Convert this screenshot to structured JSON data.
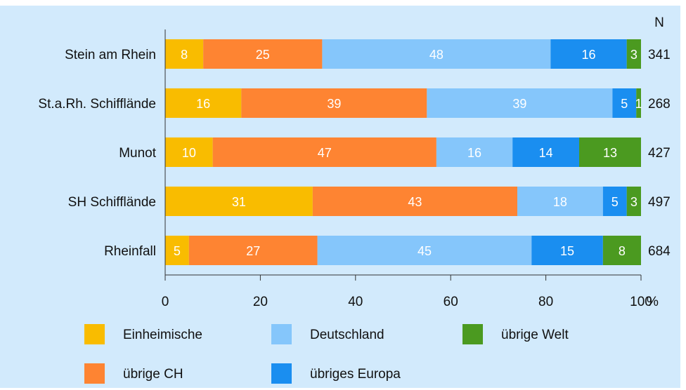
{
  "chart_data": {
    "type": "bar",
    "orientation": "horizontal",
    "stacked": true,
    "categories": [
      "Stein am Rhein",
      "St.a.Rh. Schifflände",
      "Munot",
      "SH Schifflände",
      "Rheinfall"
    ],
    "series": [
      {
        "name": "Einheimische",
        "color": "#f9bc00",
        "values": [
          8,
          16,
          10,
          31,
          5
        ]
      },
      {
        "name": "übrige CH",
        "color": "#fe8432",
        "values": [
          25,
          39,
          47,
          43,
          27
        ]
      },
      {
        "name": "Deutschland",
        "color": "#85c6fb",
        "values": [
          48,
          39,
          16,
          18,
          45
        ]
      },
      {
        "name": "übriges Europa",
        "color": "#1a8ef0",
        "values": [
          16,
          5,
          14,
          5,
          15
        ]
      },
      {
        "name": "übrige Welt",
        "color": "#4b9a20",
        "values": [
          3,
          1,
          13,
          3,
          8
        ]
      }
    ],
    "n_header": "N",
    "n_values": [
      "341",
      "268",
      "427",
      "497",
      "684"
    ],
    "xlim": [
      0,
      100
    ],
    "x_ticks": [
      "0",
      "20",
      "40",
      "60",
      "80",
      "100"
    ],
    "x_unit": "%",
    "grid": false,
    "legend_position": "bottom",
    "legend_order": [
      "Einheimische",
      "Deutschland",
      "übrige Welt",
      "übrige CH",
      "übriges Europa"
    ],
    "background_color": "#d2eafc"
  }
}
